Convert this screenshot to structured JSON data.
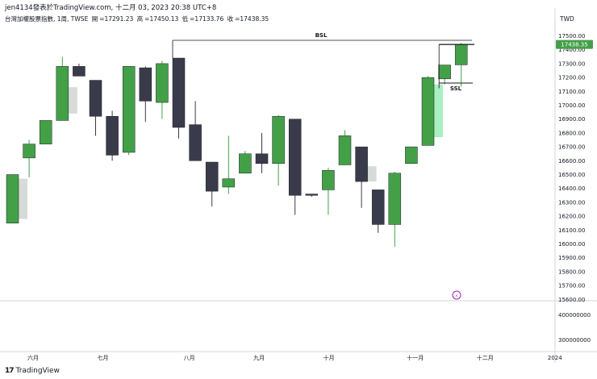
{
  "header": {
    "published_line": "jen4134發表於TradingView.com, 十二月 03, 2023 20:38 UTC+8",
    "symbol_line": "台灣加權股票指數, 1周, TWSE",
    "ohlc": {
      "open_label": "開",
      "open": "=17291.23",
      "high_label": "高",
      "high": "=17450.13",
      "low_label": "低",
      "low": "=17133.76",
      "close_label": "收",
      "close": "=17438.35"
    }
  },
  "currency": "TWD",
  "brand": {
    "logo": "17",
    "name": "TradingView"
  },
  "colors": {
    "up": "#43a047",
    "down": "#3a3b4a",
    "ghost_up": "#a8f0c0",
    "ghost_down": "#d7dbd7",
    "last_price_badge": "#43a047",
    "grid_line": "#e0e3eb",
    "text": "#131722"
  },
  "annotations": {
    "bsl_label": "BSL",
    "ssl_label": "SSL",
    "bsl_level": 17450,
    "ssl_level": 17133.76
  },
  "last_price_label": "17438.35",
  "lightning_icon": "lightning-icon",
  "chart_data": {
    "type": "candlestick",
    "title": "台灣加權股票指數, 1周, TWSE",
    "ylim": [
      15550,
      17550
    ],
    "y_ticks": [
      "17500.00",
      "17400.00",
      "17300.00",
      "17200.00",
      "17100.00",
      "17000.00",
      "16900.00",
      "16800.00",
      "16700.00",
      "16600.00",
      "16500.00",
      "16400.00",
      "16300.00",
      "16200.00",
      "16100.00",
      "16000.00",
      "15900.00",
      "15800.00",
      "15700.00",
      "15600.00"
    ],
    "volume_ticks": [
      "400000000",
      "300000000"
    ],
    "x_ticks": [
      {
        "label": "六月",
        "index": 1.6
      },
      {
        "label": "七月",
        "index": 5.8
      },
      {
        "label": "八月",
        "index": 11.0
      },
      {
        "label": "九月",
        "index": 15.2
      },
      {
        "label": "十月",
        "index": 19.4
      },
      {
        "label": "十一月",
        "index": 24.6
      },
      {
        "label": "十二月",
        "index": 28.8
      },
      {
        "label": "2024",
        "index": 33.0
      }
    ],
    "candles": [
      {
        "o": 16150,
        "h": 16500,
        "l": 16150,
        "c": 16500
      },
      {
        "o": 16620,
        "h": 16750,
        "l": 16480,
        "c": 16720
      },
      {
        "o": 16720,
        "h": 16890,
        "l": 16720,
        "c": 16890
      },
      {
        "o": 16890,
        "h": 17350,
        "l": 16890,
        "c": 17280
      },
      {
        "o": 17280,
        "h": 17300,
        "l": 17220,
        "c": 17210
      },
      {
        "o": 17180,
        "h": 17180,
        "l": 16780,
        "c": 16920
      },
      {
        "o": 16920,
        "h": 16960,
        "l": 16600,
        "c": 16640
      },
      {
        "o": 16660,
        "h": 17280,
        "l": 16640,
        "c": 17280
      },
      {
        "o": 17270,
        "h": 17280,
        "l": 16880,
        "c": 17030
      },
      {
        "o": 17020,
        "h": 17320,
        "l": 16900,
        "c": 17300
      },
      {
        "o": 17340,
        "h": 17340,
        "l": 16760,
        "c": 16840
      },
      {
        "o": 16860,
        "h": 17030,
        "l": 16600,
        "c": 16600
      },
      {
        "o": 16590,
        "h": 16590,
        "l": 16270,
        "c": 16380
      },
      {
        "o": 16410,
        "h": 16780,
        "l": 16360,
        "c": 16470
      },
      {
        "o": 16510,
        "h": 16670,
        "l": 16510,
        "c": 16650
      },
      {
        "o": 16650,
        "h": 16800,
        "l": 16510,
        "c": 16580
      },
      {
        "o": 16580,
        "h": 16930,
        "l": 16420,
        "c": 16920
      },
      {
        "o": 16900,
        "h": 16900,
        "l": 16210,
        "c": 16350
      },
      {
        "o": 16360,
        "h": 16360,
        "l": 16340,
        "c": 16350
      },
      {
        "o": 16390,
        "h": 16550,
        "l": 16210,
        "c": 16530
      },
      {
        "o": 16570,
        "h": 16820,
        "l": 16570,
        "c": 16780
      },
      {
        "o": 16700,
        "h": 16700,
        "l": 16260,
        "c": 16450
      },
      {
        "o": 16390,
        "h": 16390,
        "l": 16080,
        "c": 16140
      },
      {
        "o": 16140,
        "h": 16520,
        "l": 15980,
        "c": 16510
      },
      {
        "o": 16580,
        "h": 16690,
        "l": 16580,
        "c": 16700
      },
      {
        "o": 16710,
        "h": 17210,
        "l": 16710,
        "c": 17200
      },
      {
        "o": 17190,
        "h": 17280,
        "l": 17150,
        "c": 17290
      },
      {
        "o": 17291.23,
        "h": 17450.13,
        "l": 17133.76,
        "c": 17438.35
      }
    ],
    "ghost_candles": [
      {
        "index": 0,
        "top": 16470,
        "bottom": 16180,
        "kind": "ghost_down"
      },
      {
        "index": 3,
        "top": 17130,
        "bottom": 16940,
        "kind": "ghost_down"
      },
      {
        "index": 21,
        "top": 16560,
        "bottom": 16450,
        "kind": "ghost_down"
      },
      {
        "index": 25,
        "top": 17150,
        "bottom": 16770,
        "kind": "ghost_up"
      }
    ]
  }
}
